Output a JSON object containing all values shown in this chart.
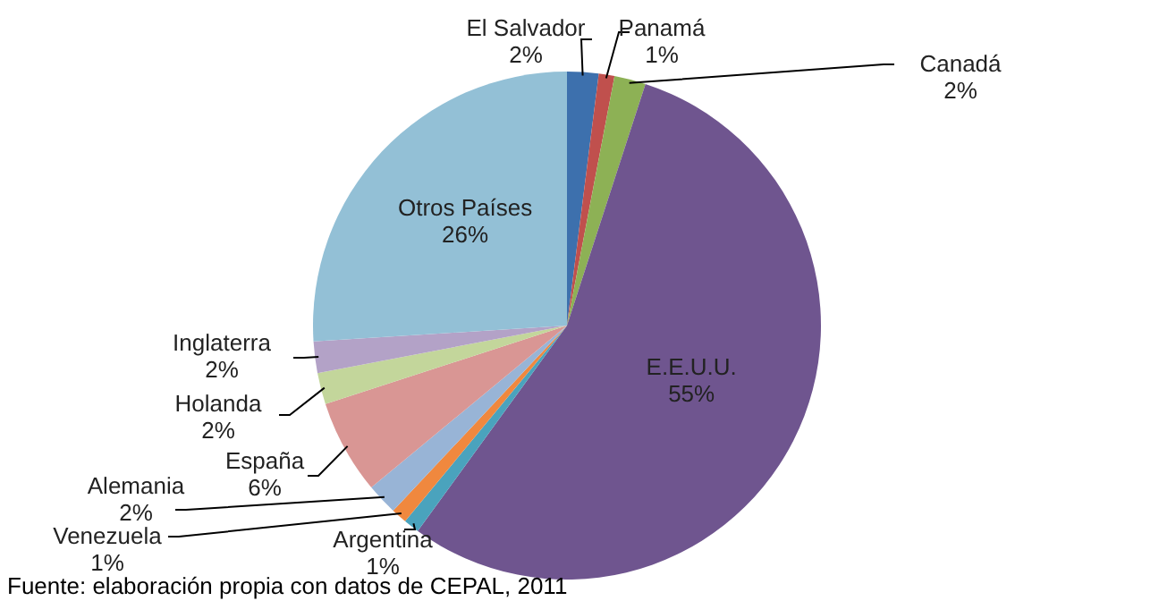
{
  "chart_data": {
    "type": "pie",
    "categories": [
      "El Salvador",
      "Panamá",
      "Canadá",
      "E.E.U.U.",
      "Argentina",
      "Venezuela",
      "Alemania",
      "España",
      "Holanda",
      "Inglaterra",
      "Otros Países"
    ],
    "values": [
      2,
      1,
      2,
      55,
      1,
      1,
      2,
      6,
      2,
      2,
      26
    ],
    "colors": [
      "#3d70ad",
      "#c0504d",
      "#8db155",
      "#6f558f",
      "#4aa3bd",
      "#f0883e",
      "#98b4d6",
      "#d99694",
      "#c3d69b",
      "#b3a2c7",
      "#93c0d6"
    ],
    "value_labels": [
      "2%",
      "1%",
      "2%",
      "55%",
      "1%",
      "1%",
      "2%",
      "6%",
      "2%",
      "2%",
      "26%"
    ],
    "annotations": [
      "Fuente: elaboración propia con datos de CEPAL, 2011"
    ]
  }
}
